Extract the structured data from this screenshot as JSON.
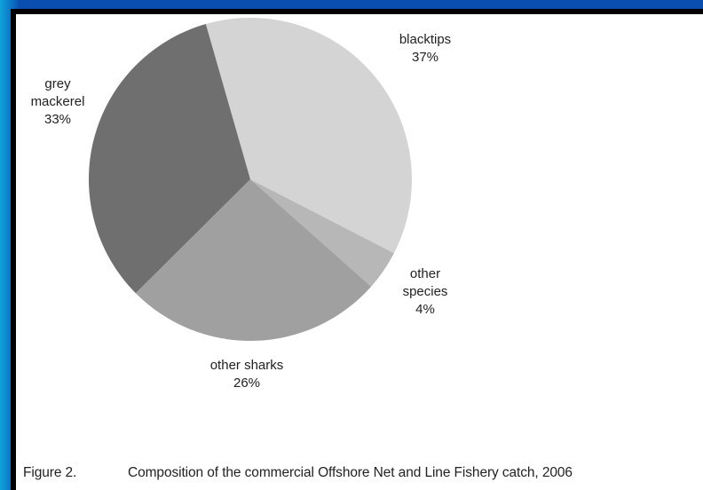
{
  "chart_data": {
    "type": "pie",
    "slices": [
      {
        "label_lines": [
          "blacktips"
        ],
        "pct_text": "37%",
        "value": 37,
        "color": "#d4d4d4"
      },
      {
        "label_lines": [
          "other",
          "species"
        ],
        "pct_text": "4%",
        "value": 4,
        "color": "#b7b7b7"
      },
      {
        "label_lines": [
          "other sharks"
        ],
        "pct_text": "26%",
        "value": 26,
        "color": "#a0a0a0"
      },
      {
        "label_lines": [
          "grey",
          "mackerel"
        ],
        "pct_text": "33%",
        "value": 33,
        "color": "#6f6f6f"
      }
    ],
    "start_angle_deg": -16,
    "direction": "clockwise"
  },
  "caption": {
    "figure": "Figure 2.",
    "text": "Composition of the commercial Offshore Net and Line Fishery catch, 2006"
  }
}
